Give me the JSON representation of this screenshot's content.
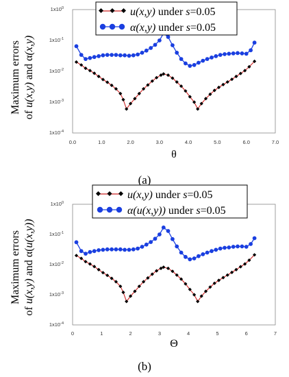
{
  "chart_data": [
    {
      "type": "line",
      "panel_label": "(a)",
      "xlabel": "θ",
      "ylabel": [
        "Maximum errors",
        "of u(x,y) and α(x,y)"
      ],
      "ylabel_parts": {
        "line1": "Maximum errors",
        "l2a": "of ",
        "u": "u",
        "xy1": "(x,y)",
        "and": " and α",
        "xy2": "(x,y)"
      },
      "xlim": [
        0.0,
        7.0
      ],
      "xticks": [
        "0.0",
        "1.0",
        "2.0",
        "3.0",
        "4.0",
        "5.0",
        "6.0",
        "7.0"
      ],
      "yscale": "log",
      "ylim": [
        0.0001,
        1
      ],
      "yticks": [
        "1x10",
        "1x10",
        "1x10",
        "1x10",
        "1x10"
      ],
      "ytick_exponents": [
        "-4",
        "-3",
        "-2",
        "-1",
        "0"
      ],
      "legend": {
        "placement": "top-center",
        "entries": [
          {
            "italic": "u",
            "mid": "(x,y)",
            "rest": " under ",
            "s": "s",
            "val": "=0.05"
          },
          {
            "italic": "α",
            "mid": "(x,y)",
            "rest": " under ",
            "s": "s",
            "val": "=0.05"
          }
        ]
      },
      "series": [
        {
          "name": "u(x,y) under s=0.05",
          "color": "#000000",
          "line_color": "#cc2222",
          "x": [
            0.13,
            0.3,
            0.45,
            0.6,
            0.75,
            0.9,
            1.05,
            1.2,
            1.35,
            1.5,
            1.65,
            1.75,
            1.86,
            2.0,
            2.15,
            2.3,
            2.45,
            2.6,
            2.75,
            2.9,
            3.05,
            3.14,
            3.3,
            3.45,
            3.6,
            3.75,
            3.9,
            4.05,
            4.2,
            4.32,
            4.45,
            4.6,
            4.75,
            4.9,
            5.05,
            5.2,
            5.35,
            5.5,
            5.65,
            5.8,
            5.95,
            6.1,
            6.28
          ],
          "y": [
            0.02,
            0.016,
            0.0125,
            0.0105,
            0.0086,
            0.0068,
            0.0054,
            0.0044,
            0.0035,
            0.0027,
            0.0019,
            0.0012,
            0.0006,
            0.0009,
            0.0013,
            0.0019,
            0.0027,
            0.0036,
            0.0048,
            0.0062,
            0.0075,
            0.0082,
            0.0075,
            0.006,
            0.0045,
            0.0033,
            0.0023,
            0.0015,
            0.001,
            0.0006,
            0.0009,
            0.0013,
            0.0018,
            0.0024,
            0.003,
            0.0037,
            0.0045,
            0.0055,
            0.0068,
            0.0085,
            0.0105,
            0.014,
            0.021
          ]
        },
        {
          "name": "α(x,y) under s=0.05",
          "color": "#1a3fe0",
          "x": [
            0.13,
            0.3,
            0.45,
            0.6,
            0.75,
            0.9,
            1.05,
            1.2,
            1.35,
            1.5,
            1.65,
            1.8,
            1.95,
            2.1,
            2.25,
            2.4,
            2.55,
            2.7,
            2.85,
            3.0,
            3.14,
            3.3,
            3.45,
            3.6,
            3.75,
            3.9,
            4.05,
            4.2,
            4.35,
            4.5,
            4.65,
            4.8,
            4.95,
            5.1,
            5.25,
            5.4,
            5.55,
            5.7,
            5.85,
            6.0,
            6.15,
            6.28
          ],
          "y": [
            0.065,
            0.034,
            0.025,
            0.027,
            0.029,
            0.031,
            0.033,
            0.034,
            0.034,
            0.034,
            0.033,
            0.033,
            0.032,
            0.033,
            0.035,
            0.04,
            0.047,
            0.057,
            0.072,
            0.1,
            0.17,
            0.13,
            0.07,
            0.04,
            0.025,
            0.018,
            0.015,
            0.016,
            0.019,
            0.022,
            0.025,
            0.028,
            0.031,
            0.034,
            0.036,
            0.037,
            0.038,
            0.039,
            0.038,
            0.037,
            0.048,
            0.085
          ]
        }
      ]
    },
    {
      "type": "line",
      "panel_label": "(b)",
      "xlabel": "Θ",
      "ylabel": [
        "Maximum errors",
        "of u(x,y) and α(u(x,y))"
      ],
      "ylabel_parts": {
        "line1": "Maximum errors",
        "l2a": "of ",
        "u": "u",
        "xy1": "(x,y)",
        "and": " and α(",
        "xy2": "u(x,y))"
      },
      "xlim": [
        0,
        7
      ],
      "xticks": [
        "0",
        "1",
        "2",
        "3",
        "4",
        "5",
        "6",
        "7"
      ],
      "yscale": "log",
      "ylim": [
        0.0001,
        1
      ],
      "yticks": [
        "1x10",
        "1x10",
        "1x10",
        "1x10",
        "1x10"
      ],
      "ytick_exponents": [
        "-4",
        "-3",
        "-2",
        "-1",
        "0"
      ],
      "legend": {
        "placement": "top-center",
        "entries": [
          {
            "italic": "u",
            "mid": "(x,y)",
            "rest": " under ",
            "s": "s",
            "val": "=0.05"
          },
          {
            "italic": "α",
            "mid": "(u(x,y))",
            "rest": " under ",
            "s": "s",
            "val": "=0.05"
          }
        ]
      },
      "series": [
        {
          "name": "u(x,y) under s=0.05",
          "color": "#000000",
          "line_color": "#cc2222",
          "x": [
            0.13,
            0.3,
            0.45,
            0.6,
            0.75,
            0.9,
            1.05,
            1.2,
            1.35,
            1.5,
            1.65,
            1.75,
            1.86,
            2.0,
            2.15,
            2.3,
            2.45,
            2.6,
            2.75,
            2.9,
            3.05,
            3.14,
            3.3,
            3.45,
            3.6,
            3.75,
            3.9,
            4.05,
            4.2,
            4.32,
            4.45,
            4.6,
            4.75,
            4.9,
            5.05,
            5.2,
            5.35,
            5.5,
            5.65,
            5.8,
            5.95,
            6.1,
            6.28
          ],
          "y": [
            0.02,
            0.016,
            0.0125,
            0.0105,
            0.0086,
            0.0068,
            0.0054,
            0.0044,
            0.0035,
            0.0027,
            0.0019,
            0.0012,
            0.0006,
            0.0009,
            0.0013,
            0.0019,
            0.0027,
            0.0036,
            0.0048,
            0.0062,
            0.0075,
            0.0082,
            0.0075,
            0.006,
            0.0045,
            0.0033,
            0.0023,
            0.0015,
            0.001,
            0.0006,
            0.0009,
            0.0013,
            0.0018,
            0.0024,
            0.003,
            0.0037,
            0.0045,
            0.0055,
            0.0068,
            0.0085,
            0.0105,
            0.014,
            0.021
          ]
        },
        {
          "name": "α(u(x,y)) under s=0.05",
          "color": "#1a3fe0",
          "x": [
            0.13,
            0.3,
            0.45,
            0.6,
            0.75,
            0.9,
            1.05,
            1.2,
            1.35,
            1.5,
            1.65,
            1.8,
            1.95,
            2.1,
            2.25,
            2.4,
            2.55,
            2.7,
            2.85,
            3.0,
            3.14,
            3.3,
            3.45,
            3.6,
            3.75,
            3.9,
            4.05,
            4.2,
            4.35,
            4.5,
            4.65,
            4.8,
            4.95,
            5.1,
            5.25,
            5.4,
            5.55,
            5.7,
            5.85,
            6.0,
            6.15,
            6.28
          ],
          "y": [
            0.055,
            0.028,
            0.023,
            0.026,
            0.028,
            0.03,
            0.031,
            0.032,
            0.032,
            0.032,
            0.032,
            0.031,
            0.031,
            0.032,
            0.034,
            0.039,
            0.046,
            0.056,
            0.072,
            0.1,
            0.17,
            0.13,
            0.07,
            0.04,
            0.025,
            0.018,
            0.015,
            0.016,
            0.019,
            0.022,
            0.025,
            0.028,
            0.031,
            0.034,
            0.036,
            0.037,
            0.039,
            0.04,
            0.04,
            0.039,
            0.048,
            0.075
          ]
        }
      ]
    }
  ]
}
